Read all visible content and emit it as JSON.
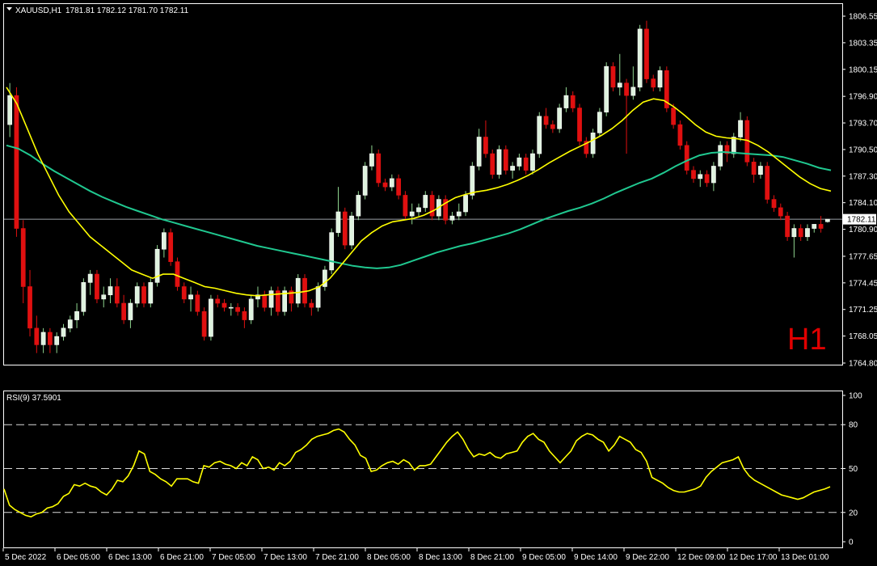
{
  "header": {
    "collapse_glyph": "triangle-down-icon",
    "symbol_timeframe": "XAUUSD,H1",
    "ohlc": "1781.81 1782.12 1781.70 1782.11",
    "timeframe_watermark": "H1"
  },
  "colors": {
    "background": "#000000",
    "bull_candle": "#ffffff",
    "bull_candle_fill": "#dff3df",
    "bear_candle": "#e01010",
    "ma_fast": "#ffff00",
    "ma_slow": "#20c890",
    "rsi_line": "#ffff00",
    "grid_line": "#ffffff",
    "watermark": "#e00000"
  },
  "price_axis": {
    "ticks": [
      "1806.55",
      "1803.35",
      "1800.15",
      "1796.90",
      "1793.70",
      "1790.50",
      "1787.30",
      "1784.10",
      "1780.90",
      "1777.65",
      "1774.45",
      "1771.25",
      "1768.05",
      "1764.80"
    ],
    "current_price": "1782.11",
    "range": [
      1764.8,
      1806.55
    ]
  },
  "rsi_panel": {
    "title": "RSI(9) 37.5901",
    "ticks": [
      "100",
      "80",
      "50",
      "20",
      "0"
    ],
    "levels": [
      80,
      50,
      20
    ],
    "values": [
      36,
      25,
      22,
      20,
      18,
      17,
      19,
      20,
      23,
      24,
      26,
      31,
      33,
      39,
      38,
      40,
      38,
      37,
      34,
      32,
      36,
      42,
      41,
      45,
      52,
      62,
      60,
      48,
      46,
      43,
      41,
      38,
      43,
      43,
      43,
      41,
      40,
      52,
      51,
      54,
      55,
      53,
      52,
      50,
      54,
      52,
      58,
      56,
      50,
      51,
      49,
      54,
      52,
      55,
      61,
      63,
      66,
      70,
      72,
      73,
      74,
      76,
      77,
      75,
      70,
      66,
      59,
      57,
      48,
      49,
      52,
      54,
      55,
      53,
      56,
      54,
      49,
      52,
      52,
      53,
      58,
      63,
      68,
      72,
      75,
      70,
      63,
      58,
      60,
      59,
      61,
      58,
      57,
      60,
      61,
      62,
      68,
      72,
      74,
      70,
      68,
      62,
      58,
      54,
      58,
      62,
      69,
      72,
      74,
      73,
      70,
      68,
      62,
      66,
      72,
      70,
      68,
      63,
      61,
      55,
      44,
      42,
      40,
      37,
      35,
      34,
      34,
      35,
      36,
      38,
      44,
      48,
      51,
      54,
      55,
      56,
      58,
      50,
      45,
      42,
      40,
      38,
      36,
      34,
      32,
      31,
      30,
      29,
      30,
      32,
      34,
      35,
      36,
      37.59
    ]
  },
  "time_axis": {
    "labels": [
      "5 Dec 2022",
      "6 Dec 05:00",
      "6 Dec 13:00",
      "6 Dec 21:00",
      "7 Dec 05:00",
      "7 Dec 13:00",
      "7 Dec 21:00",
      "8 Dec 05:00",
      "8 Dec 13:00",
      "8 Dec 21:00",
      "9 Dec 05:00",
      "9 Dec 14:00",
      "9 Dec 22:00",
      "12 Dec 09:00",
      "12 Dec 17:00",
      "13 Dec 01:00"
    ]
  },
  "chart_data": {
    "type": "candlestick",
    "symbol": "XAUUSD",
    "timeframe": "H1",
    "ylim": [
      1764.8,
      1806.55
    ],
    "candles": [
      [
        1793.5,
        1798.5,
        1792.0,
        1797.0
      ],
      [
        1797.0,
        1798.0,
        1780.0,
        1781.0
      ],
      [
        1781.0,
        1782.0,
        1772.0,
        1774.0
      ],
      [
        1774.0,
        1776.0,
        1768.0,
        1769.0
      ],
      [
        1769.0,
        1770.5,
        1766.0,
        1767.0
      ],
      [
        1767.0,
        1769.0,
        1766.0,
        1768.5
      ],
      [
        1768.5,
        1769.0,
        1766.0,
        1767.0
      ],
      [
        1767.0,
        1768.5,
        1766.0,
        1768.0
      ],
      [
        1768.0,
        1769.5,
        1767.5,
        1769.0
      ],
      [
        1769.0,
        1770.5,
        1768.5,
        1770.0
      ],
      [
        1770.0,
        1772.0,
        1769.0,
        1771.0
      ],
      [
        1771.0,
        1775.0,
        1770.5,
        1774.5
      ],
      [
        1774.5,
        1776.0,
        1773.0,
        1775.5
      ],
      [
        1775.5,
        1776.0,
        1772.0,
        1772.5
      ],
      [
        1772.5,
        1774.0,
        1771.5,
        1773.0
      ],
      [
        1773.0,
        1775.0,
        1772.0,
        1774.0
      ],
      [
        1774.0,
        1775.0,
        1771.5,
        1772.0
      ],
      [
        1772.0,
        1773.0,
        1769.5,
        1770.0
      ],
      [
        1770.0,
        1772.5,
        1769.0,
        1772.0
      ],
      [
        1772.0,
        1774.5,
        1771.5,
        1774.0
      ],
      [
        1774.0,
        1774.5,
        1771.5,
        1772.0
      ],
      [
        1772.0,
        1775.0,
        1771.5,
        1774.5
      ],
      [
        1774.5,
        1779.0,
        1774.0,
        1778.5
      ],
      [
        1778.5,
        1781.0,
        1777.5,
        1780.5
      ],
      [
        1780.5,
        1781.0,
        1776.5,
        1777.0
      ],
      [
        1777.0,
        1777.5,
        1773.5,
        1774.0
      ],
      [
        1774.0,
        1774.5,
        1772.0,
        1772.5
      ],
      [
        1772.5,
        1774.0,
        1771.0,
        1773.0
      ],
      [
        1773.0,
        1773.5,
        1770.5,
        1771.0
      ],
      [
        1771.0,
        1771.5,
        1767.5,
        1768.0
      ],
      [
        1768.0,
        1773.0,
        1767.5,
        1772.5
      ],
      [
        1772.5,
        1773.0,
        1771.5,
        1772.0
      ],
      [
        1772.0,
        1772.5,
        1771.0,
        1771.5
      ],
      [
        1771.5,
        1772.0,
        1770.5,
        1771.5
      ],
      [
        1771.5,
        1772.0,
        1770.5,
        1771.0
      ],
      [
        1771.0,
        1771.5,
        1769.0,
        1770.0
      ],
      [
        1770.0,
        1773.0,
        1769.5,
        1772.5
      ],
      [
        1772.5,
        1774.0,
        1771.5,
        1773.0
      ],
      [
        1773.0,
        1773.5,
        1771.0,
        1771.5
      ],
      [
        1771.5,
        1774.0,
        1770.5,
        1773.5
      ],
      [
        1773.5,
        1774.0,
        1770.5,
        1771.0
      ],
      [
        1771.0,
        1774.0,
        1770.5,
        1773.5
      ],
      [
        1773.5,
        1774.0,
        1771.0,
        1772.0
      ],
      [
        1772.0,
        1775.5,
        1771.5,
        1775.0
      ],
      [
        1775.0,
        1775.5,
        1771.5,
        1772.0
      ],
      [
        1772.0,
        1772.5,
        1770.5,
        1771.5
      ],
      [
        1771.5,
        1774.5,
        1771.0,
        1774.0
      ],
      [
        1774.0,
        1776.5,
        1773.5,
        1776.0
      ],
      [
        1776.0,
        1781.0,
        1775.5,
        1780.5
      ],
      [
        1780.5,
        1786.0,
        1780.0,
        1783.0
      ],
      [
        1783.0,
        1783.5,
        1778.5,
        1779.0
      ],
      [
        1779.0,
        1783.0,
        1778.5,
        1782.5
      ],
      [
        1782.5,
        1785.5,
        1782.0,
        1785.0
      ],
      [
        1785.0,
        1789.0,
        1784.5,
        1788.5
      ],
      [
        1788.5,
        1791.0,
        1788.0,
        1790.0
      ],
      [
        1790.0,
        1790.5,
        1786.0,
        1786.5
      ],
      [
        1786.5,
        1787.0,
        1785.5,
        1786.0
      ],
      [
        1786.0,
        1787.5,
        1785.5,
        1787.0
      ],
      [
        1787.0,
        1787.5,
        1784.5,
        1785.0
      ],
      [
        1785.0,
        1785.5,
        1782.0,
        1782.5
      ],
      [
        1782.5,
        1784.0,
        1781.5,
        1783.0
      ],
      [
        1783.0,
        1784.0,
        1782.5,
        1783.5
      ],
      [
        1783.5,
        1785.5,
        1783.0,
        1785.0
      ],
      [
        1785.0,
        1785.5,
        1782.0,
        1782.5
      ],
      [
        1782.5,
        1785.0,
        1782.0,
        1784.5
      ],
      [
        1784.5,
        1785.0,
        1781.5,
        1782.0
      ],
      [
        1782.0,
        1783.0,
        1781.5,
        1782.5
      ],
      [
        1782.5,
        1784.0,
        1782.0,
        1783.0
      ],
      [
        1783.0,
        1785.5,
        1782.5,
        1785.0
      ],
      [
        1785.0,
        1789.0,
        1784.5,
        1788.5
      ],
      [
        1788.5,
        1793.0,
        1788.0,
        1792.0
      ],
      [
        1792.0,
        1794.0,
        1789.5,
        1790.0
      ],
      [
        1790.0,
        1790.5,
        1787.0,
        1787.5
      ],
      [
        1787.5,
        1791.0,
        1787.0,
        1790.5
      ],
      [
        1790.5,
        1791.0,
        1787.5,
        1788.0
      ],
      [
        1788.0,
        1789.0,
        1787.0,
        1788.5
      ],
      [
        1788.5,
        1790.0,
        1788.0,
        1789.5
      ],
      [
        1789.5,
        1790.0,
        1787.5,
        1788.0
      ],
      [
        1788.0,
        1790.5,
        1787.5,
        1790.0
      ],
      [
        1790.0,
        1795.0,
        1789.5,
        1794.5
      ],
      [
        1794.5,
        1795.5,
        1793.0,
        1793.5
      ],
      [
        1793.5,
        1794.0,
        1792.5,
        1793.0
      ],
      [
        1793.0,
        1796.0,
        1792.5,
        1795.5
      ],
      [
        1795.5,
        1798.0,
        1795.0,
        1797.0
      ],
      [
        1797.0,
        1797.5,
        1795.0,
        1795.5
      ],
      [
        1795.5,
        1796.0,
        1791.0,
        1791.5
      ],
      [
        1791.5,
        1792.0,
        1789.5,
        1790.0
      ],
      [
        1790.0,
        1793.0,
        1789.5,
        1792.5
      ],
      [
        1792.5,
        1795.5,
        1792.0,
        1795.0
      ],
      [
        1795.0,
        1801.0,
        1794.5,
        1800.5
      ],
      [
        1800.5,
        1801.0,
        1797.5,
        1798.0
      ],
      [
        1798.0,
        1802.0,
        1797.0,
        1798.5
      ],
      [
        1798.5,
        1799.0,
        1790.0,
        1797.0
      ],
      [
        1797.0,
        1800.5,
        1796.5,
        1798.0
      ],
      [
        1798.0,
        1805.5,
        1797.5,
        1805.0
      ],
      [
        1805.0,
        1806.0,
        1798.5,
        1799.0
      ],
      [
        1799.0,
        1799.5,
        1797.5,
        1798.0
      ],
      [
        1798.0,
        1800.5,
        1797.5,
        1800.0
      ],
      [
        1800.0,
        1800.5,
        1795.0,
        1795.5
      ],
      [
        1795.5,
        1796.0,
        1793.0,
        1793.5
      ],
      [
        1793.5,
        1794.0,
        1790.5,
        1791.0
      ],
      [
        1791.0,
        1791.5,
        1787.5,
        1788.0
      ],
      [
        1788.0,
        1788.5,
        1786.5,
        1787.0
      ],
      [
        1787.0,
        1788.0,
        1786.0,
        1787.5
      ],
      [
        1787.5,
        1788.0,
        1786.0,
        1786.5
      ],
      [
        1786.5,
        1789.0,
        1785.5,
        1788.5
      ],
      [
        1788.5,
        1791.5,
        1788.0,
        1791.0
      ],
      [
        1791.0,
        1791.5,
        1789.0,
        1790.0
      ],
      [
        1790.0,
        1792.5,
        1789.5,
        1792.0
      ],
      [
        1792.0,
        1795.0,
        1791.5,
        1794.0
      ],
      [
        1794.0,
        1794.5,
        1788.5,
        1789.0
      ],
      [
        1789.0,
        1789.5,
        1786.5,
        1787.5
      ],
      [
        1787.5,
        1789.0,
        1787.0,
        1788.5
      ],
      [
        1788.5,
        1789.0,
        1784.0,
        1784.5
      ],
      [
        1784.5,
        1785.0,
        1783.0,
        1783.5
      ],
      [
        1783.5,
        1784.0,
        1782.0,
        1782.5
      ],
      [
        1782.5,
        1783.0,
        1779.5,
        1780.0
      ],
      [
        1780.0,
        1781.5,
        1777.5,
        1781.0
      ],
      [
        1781.0,
        1781.5,
        1779.5,
        1780.0
      ],
      [
        1780.0,
        1781.5,
        1779.5,
        1781.0
      ],
      [
        1781.0,
        1781.5,
        1780.5,
        1781.5
      ],
      [
        1781.5,
        1782.5,
        1780.5,
        1781.0
      ],
      [
        1781.81,
        1782.12,
        1781.7,
        1782.11
      ]
    ],
    "ma_fast_visual": [
      1798,
      1796,
      1793,
      1790,
      1787.5,
      1785,
      1783,
      1781.5,
      1780,
      1779,
      1778,
      1777,
      1776,
      1775.5,
      1775,
      1775.5,
      1775.5,
      1775,
      1774.5,
      1774,
      1773.8,
      1773.5,
      1773.2,
      1773,
      1772.9,
      1773,
      1773.1,
      1773.2,
      1773.3,
      1773.5,
      1774,
      1775,
      1776.5,
      1778,
      1779.5,
      1780.5,
      1781.3,
      1781.8,
      1782,
      1782.2,
      1782.6,
      1783.2,
      1784,
      1784.7,
      1785.1,
      1785.4,
      1785.6,
      1785.9,
      1786.3,
      1786.8,
      1787.4,
      1788.1,
      1788.9,
      1789.6,
      1790.3,
      1790.9,
      1791.5,
      1792.2,
      1793,
      1794,
      1795.2,
      1796.2,
      1796.6,
      1796.4,
      1795.6,
      1794.6,
      1793.5,
      1792.6,
      1792.1,
      1791.9,
      1791.8,
      1791.6,
      1791,
      1790.2,
      1789.2,
      1788.2,
      1787.2,
      1786.4,
      1785.8,
      1785.5
    ],
    "ma_slow_visual": [
      1791,
      1790.6,
      1789.8,
      1788.8,
      1787.9,
      1787.1,
      1786.3,
      1785.5,
      1784.8,
      1784.2,
      1783.6,
      1783.1,
      1782.6,
      1782.1,
      1781.7,
      1781.3,
      1780.9,
      1780.5,
      1780.1,
      1779.7,
      1779.3,
      1778.9,
      1778.6,
      1778.3,
      1778,
      1777.7,
      1777.4,
      1777.1,
      1776.8,
      1776.5,
      1776.3,
      1776.2,
      1776.3,
      1776.6,
      1777.1,
      1777.6,
      1778.1,
      1778.5,
      1778.9,
      1779.2,
      1779.6,
      1780,
      1780.4,
      1780.9,
      1781.5,
      1782.1,
      1782.6,
      1783.1,
      1783.5,
      1784,
      1784.6,
      1785.3,
      1785.9,
      1786.5,
      1787,
      1787.7,
      1788.5,
      1789.2,
      1789.8,
      1790.1,
      1790.2,
      1790.1,
      1790,
      1789.9,
      1789.8,
      1789.6,
      1789.2,
      1788.8,
      1788.3,
      1788
    ]
  }
}
